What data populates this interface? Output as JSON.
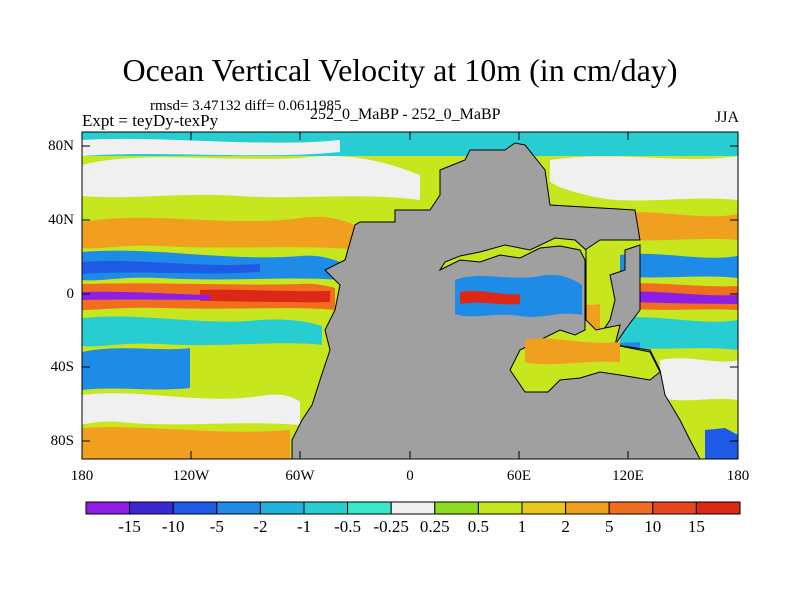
{
  "title": "Ocean Vertical Velocity at 10m (in cm/day)",
  "stats": "rmsd= 3.47132 diff= 0.0611985",
  "experiment": "Expt = teyDy-texPy",
  "case_label": "252_0_MaBP - 252_0_MaBP",
  "season": "JJA",
  "lat_ticks": [
    "80N",
    "40N",
    "0",
    "40S",
    "80S"
  ],
  "lon_ticks": [
    "180",
    "120W",
    "60W",
    "0",
    "60E",
    "120E",
    "180"
  ],
  "colorbar": {
    "labels": [
      "-15",
      "-10",
      "-5",
      "-2",
      "-1",
      "-0.5",
      "-0.25",
      "0.25",
      "0.5",
      "1",
      "2",
      "5",
      "10",
      "15"
    ],
    "colors": [
      "#8c1ee6",
      "#3c28d2",
      "#1e5ae6",
      "#1e8ce6",
      "#1eb4dc",
      "#28cdd2",
      "#3ce6c8",
      "#f0f0f0",
      "#8cdc1e",
      "#c8e61e",
      "#e6c81e",
      "#f0a01e",
      "#f06e1e",
      "#e6461e",
      "#dc2814"
    ]
  },
  "land_color": "#a0a0a0"
}
